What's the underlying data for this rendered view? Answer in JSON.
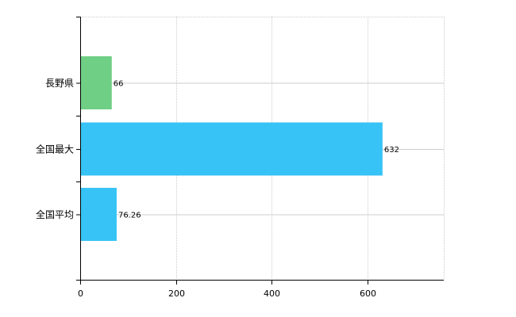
{
  "chart_data": {
    "type": "bar",
    "orientation": "horizontal",
    "categories": [
      "長野県",
      "全国最大",
      "全国平均"
    ],
    "values": [
      66,
      632,
      76.26
    ],
    "value_labels": [
      "66",
      "632",
      "76.26"
    ],
    "colors": [
      "#6fcf85",
      "#37c3f5",
      "#37c3f5"
    ],
    "xlim": [
      0,
      760
    ],
    "xticks": [
      0,
      200,
      400,
      600
    ],
    "xtick_labels": [
      "0",
      "200",
      "400",
      "600"
    ],
    "grid": true,
    "grid_color": "#cccccc",
    "axis_color": "#000000",
    "legend": "none",
    "title": "",
    "xlabel": "",
    "ylabel": ""
  }
}
